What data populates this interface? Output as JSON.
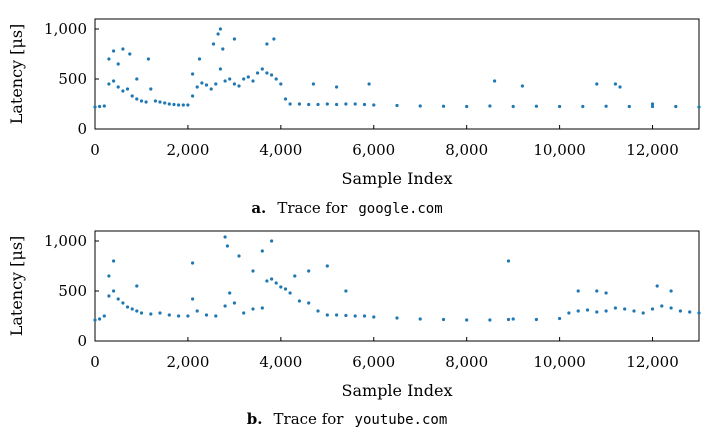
{
  "colors": {
    "series": "#1f77b4",
    "axis": "#000000"
  },
  "chart_data": [
    {
      "type": "scatter",
      "xlabel": "Sample Index",
      "ylabel": "Latency [μs]",
      "xlim": [
        0,
        13000
      ],
      "ylim": [
        0,
        1100
      ],
      "xticks": [
        0,
        2000,
        4000,
        6000,
        8000,
        10000,
        12000
      ],
      "xtick_labels": [
        "0",
        "2,000",
        "4,000",
        "6,000",
        "8,000",
        "10,000",
        "12,000"
      ],
      "yticks": [
        0,
        500,
        1000
      ],
      "ytick_labels": [
        "0",
        "500",
        "1,000"
      ],
      "grid": false,
      "caption_letter": "a.",
      "caption_text": "Trace for",
      "caption_code": "google.com",
      "series": [
        {
          "x": [
            0,
            100,
            200,
            300,
            400,
            500,
            600,
            700,
            800,
            900,
            1000,
            1100,
            1200,
            1300,
            1400,
            1500,
            1600,
            1700,
            1800,
            1900,
            2000,
            2100,
            2200,
            2300,
            2400,
            2500,
            2600,
            2700,
            2800,
            2900,
            3000,
            3100,
            3200,
            3300,
            3400,
            3500,
            3600,
            3700,
            3800,
            3900,
            4000,
            4100,
            4200,
            4400,
            4600,
            4800,
            5000,
            5200,
            5400,
            5600,
            5800,
            6000,
            6500,
            7000,
            7500,
            8000,
            8500,
            9000,
            9500,
            10000,
            10500,
            11000,
            11500,
            12000,
            12500,
            13000
          ],
          "y": [
            220,
            225,
            230,
            450,
            480,
            420,
            380,
            400,
            330,
            300,
            280,
            270,
            400,
            280,
            270,
            260,
            250,
            245,
            240,
            240,
            240,
            330,
            420,
            460,
            440,
            400,
            450,
            600,
            480,
            500,
            450,
            430,
            500,
            520,
            480,
            560,
            600,
            560,
            540,
            500,
            450,
            300,
            250,
            250,
            245,
            245,
            250,
            245,
            250,
            250,
            245,
            240,
            235,
            230,
            228,
            225,
            230,
            225,
            228,
            225,
            225,
            228,
            225,
            225,
            225,
            220
          ]
        },
        {
          "x": [
            300,
            400,
            500,
            600,
            750,
            900,
            1150,
            2100,
            2250,
            2550,
            2650,
            2700,
            2750,
            3000,
            3700,
            3850,
            4700,
            5200,
            5900,
            8600,
            9200,
            10800,
            11200,
            11300,
            12000
          ],
          "y": [
            700,
            780,
            650,
            800,
            750,
            500,
            700,
            550,
            700,
            850,
            950,
            1000,
            800,
            900,
            850,
            900,
            450,
            420,
            450,
            480,
            430,
            450,
            450,
            420,
            250
          ]
        }
      ]
    },
    {
      "type": "scatter",
      "xlabel": "Sample Index",
      "ylabel": "Latency [μs]",
      "xlim": [
        0,
        13000
      ],
      "ylim": [
        0,
        1100
      ],
      "xticks": [
        0,
        2000,
        4000,
        6000,
        8000,
        10000,
        12000
      ],
      "xtick_labels": [
        "0",
        "2,000",
        "4,000",
        "6,000",
        "8,000",
        "10,000",
        "12,000"
      ],
      "yticks": [
        0,
        500,
        1000
      ],
      "ytick_labels": [
        "0",
        "500",
        "1,000"
      ],
      "grid": false,
      "caption_letter": "b.",
      "caption_text": "Trace for",
      "caption_code": "youtube.com",
      "series": [
        {
          "x": [
            0,
            100,
            200,
            300,
            400,
            500,
            600,
            700,
            800,
            900,
            1000,
            1200,
            1400,
            1600,
            1800,
            2000,
            2100,
            2200,
            2400,
            2600,
            2800,
            2900,
            3000,
            3200,
            3400,
            3600,
            3700,
            3800,
            3900,
            4000,
            4100,
            4200,
            4400,
            4600,
            4800,
            5000,
            5200,
            5400,
            5600,
            5800,
            6000,
            6500,
            7000,
            7500,
            8000,
            8500,
            8900,
            9000,
            9500,
            10000,
            10200,
            10400,
            10600,
            10800,
            11000,
            11200,
            11400,
            11600,
            11800,
            12000,
            12200,
            12400,
            12600,
            12800,
            13000
          ],
          "y": [
            210,
            220,
            250,
            450,
            500,
            420,
            380,
            340,
            320,
            300,
            280,
            270,
            280,
            260,
            250,
            250,
            420,
            300,
            260,
            250,
            350,
            480,
            380,
            280,
            320,
            330,
            600,
            620,
            580,
            540,
            520,
            480,
            400,
            380,
            300,
            260,
            260,
            255,
            250,
            250,
            240,
            230,
            220,
            215,
            210,
            210,
            215,
            220,
            215,
            225,
            280,
            300,
            310,
            290,
            300,
            330,
            320,
            300,
            280,
            320,
            350,
            330,
            300,
            290,
            280
          ]
        },
        {
          "x": [
            300,
            400,
            900,
            2100,
            2800,
            2850,
            3100,
            3400,
            3600,
            3800,
            4300,
            4600,
            5000,
            5400,
            8900,
            10400,
            10800,
            11000,
            12100,
            12400
          ],
          "y": [
            650,
            800,
            550,
            780,
            1040,
            950,
            850,
            700,
            900,
            1000,
            650,
            700,
            750,
            500,
            800,
            500,
            500,
            480,
            550,
            500
          ]
        }
      ]
    }
  ]
}
